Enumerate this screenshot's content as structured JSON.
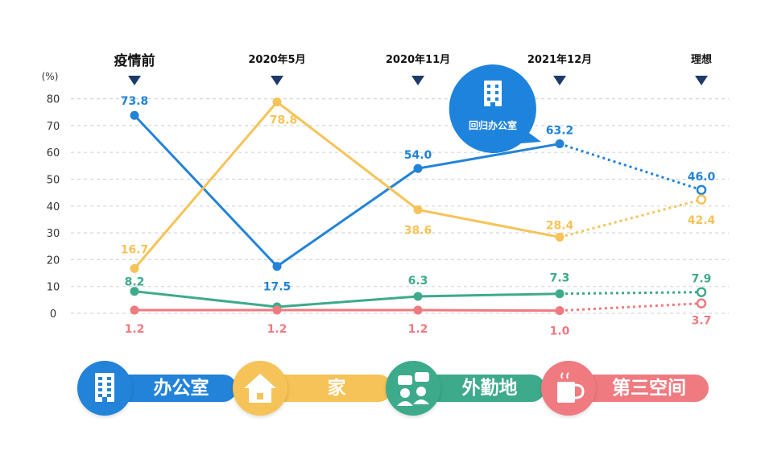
{
  "chart_data": {
    "type": "line",
    "categories": [
      "疫情前",
      "2020年5月",
      "2020年11月",
      "2021年12月",
      "理想"
    ],
    "y_unit_label": "(%)",
    "ylim": [
      0,
      80
    ],
    "yticks": [
      0,
      10,
      20,
      30,
      40,
      50,
      60,
      70,
      80
    ],
    "grid": true,
    "projected_from_index": 3,
    "series": [
      {
        "name": "办公室",
        "color": "#2283d8",
        "values": [
          73.8,
          17.5,
          54.0,
          63.2,
          46.0
        ],
        "labels": [
          "73.8",
          "17.5",
          "54.0",
          "63.2",
          "46.0"
        ]
      },
      {
        "name": "家",
        "color": "#f5c357",
        "values": [
          16.7,
          78.8,
          38.6,
          28.4,
          42.4
        ],
        "labels": [
          "16.7",
          "78.8",
          "38.6",
          "28.4",
          "42.4"
        ]
      },
      {
        "name": "外勤地",
        "color": "#3daa8b",
        "values": [
          8.2,
          2.4,
          6.3,
          7.3,
          7.9
        ],
        "labels": [
          "8.2",
          "",
          "6.3",
          "7.3",
          "7.9"
        ]
      },
      {
        "name": "第三空间",
        "color": "#ef7a80",
        "values": [
          1.2,
          1.2,
          1.2,
          1.0,
          3.7
        ],
        "labels": [
          "1.2",
          "1.2",
          "1.2",
          "1.0",
          "3.7"
        ]
      }
    ],
    "annotation": "回归办公室"
  },
  "legend": [
    {
      "label": "办公室",
      "icon": "building-icon",
      "color": "#2283d8"
    },
    {
      "label": "家",
      "icon": "house-icon",
      "color": "#f5c357"
    },
    {
      "label": "外勤地",
      "icon": "chat-people-icon",
      "color": "#3daa8b"
    },
    {
      "label": "第三空间",
      "icon": "coffee-cup-icon",
      "color": "#ef7a80"
    }
  ]
}
